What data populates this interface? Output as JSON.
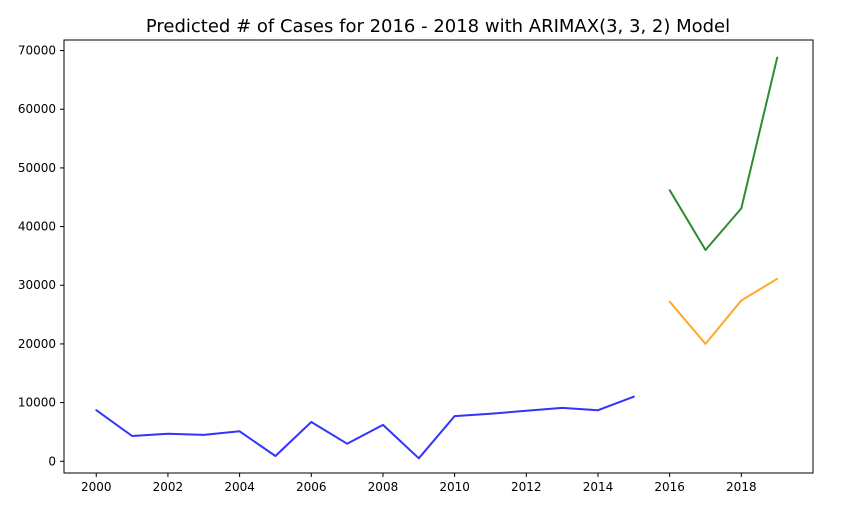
{
  "chart_data": {
    "type": "line",
    "title": "Predicted # of Cases for 2016 - 2018 with ARIMAX(3, 3, 2) Model",
    "xlabel": "",
    "ylabel": "",
    "xlim": [
      1999.1,
      2020.0
    ],
    "ylim": [
      -2000,
      71800
    ],
    "x_ticks": [
      2000,
      2002,
      2004,
      2006,
      2008,
      2010,
      2012,
      2014,
      2016,
      2018
    ],
    "x_tick_labels": [
      "2000",
      "2002",
      "2004",
      "2006",
      "2008",
      "2010",
      "2012",
      "2014",
      "2016",
      "2018"
    ],
    "y_ticks": [
      0,
      10000,
      20000,
      30000,
      40000,
      50000,
      60000,
      70000
    ],
    "y_tick_labels": [
      "0",
      "10000",
      "20000",
      "30000",
      "40000",
      "50000",
      "60000",
      "70000"
    ],
    "grid": false,
    "legend": "none",
    "series": [
      {
        "color": "#3333ff",
        "x": [
          2000,
          2001,
          2002,
          2003,
          2004,
          2005,
          2006,
          2007,
          2008,
          2009,
          2010,
          2011,
          2012,
          2013,
          2014,
          2015
        ],
        "values": [
          8700,
          4300,
          4700,
          4500,
          5100,
          900,
          6700,
          3000,
          6200,
          500,
          7700,
          8100,
          8600,
          9100,
          8700,
          11000
        ]
      },
      {
        "color": "#ffa726",
        "x": [
          2016,
          2017,
          2018,
          2019
        ],
        "values": [
          27200,
          20000,
          27400,
          31100
        ]
      },
      {
        "color": "#2e8b2e",
        "x": [
          2016,
          2017,
          2018,
          2019
        ],
        "values": [
          46200,
          36000,
          43100,
          68800
        ]
      }
    ]
  }
}
